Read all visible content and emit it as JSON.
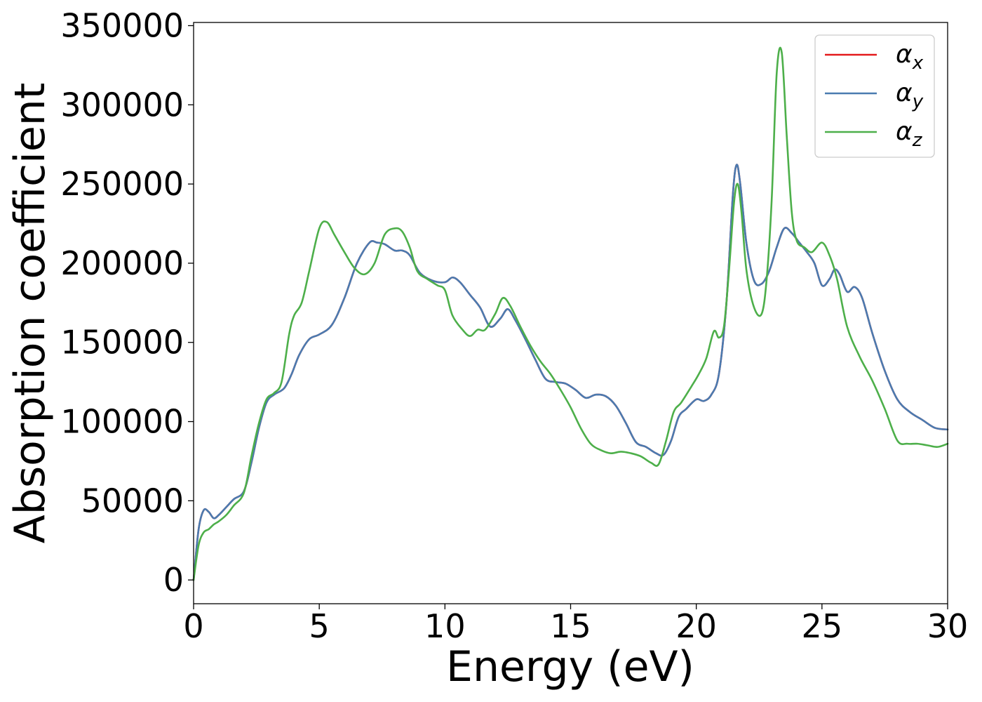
{
  "chart_data": {
    "type": "line",
    "title": "",
    "xlabel": "Energy (eV)",
    "ylabel": "Absorption coefficient",
    "xlim": [
      0,
      30
    ],
    "ylim": [
      -15000,
      352000
    ],
    "xticks": [
      0,
      5,
      10,
      15,
      20,
      25,
      30
    ],
    "yticks": [
      0,
      50000,
      100000,
      150000,
      200000,
      250000,
      300000,
      350000
    ],
    "grid": false,
    "legend_position": "top-right",
    "series": [
      {
        "name": "α_x",
        "symbol": "α",
        "subscript": "x",
        "color": "#e41a1c",
        "x": [
          0,
          0.2,
          0.4,
          0.6,
          0.8,
          1.0,
          1.3,
          1.6,
          2.0,
          2.3,
          2.6,
          2.9,
          3.2,
          3.6,
          3.9,
          4.2,
          4.6,
          5.0,
          5.5,
          6.0,
          6.5,
          7.0,
          7.3,
          7.6,
          8.0,
          8.3,
          8.6,
          9.0,
          9.5,
          10.0,
          10.3,
          10.6,
          11.0,
          11.4,
          11.8,
          12.2,
          12.5,
          12.8,
          13.2,
          13.6,
          14.0,
          14.4,
          14.8,
          15.2,
          15.6,
          16.0,
          16.4,
          16.8,
          17.2,
          17.6,
          18.0,
          18.4,
          18.7,
          19.0,
          19.3,
          19.6,
          20.0,
          20.3,
          20.6,
          20.9,
          21.2,
          21.45,
          21.6,
          21.75,
          22.0,
          22.3,
          22.6,
          22.9,
          23.2,
          23.5,
          23.8,
          24.1,
          24.4,
          24.7,
          25.0,
          25.3,
          25.5,
          25.7,
          26.0,
          26.3,
          26.6,
          27.0,
          27.5,
          28.0,
          28.5,
          29.0,
          29.5,
          30.0
        ],
        "y": [
          0,
          32000,
          44000,
          43000,
          39000,
          41000,
          46000,
          51000,
          56000,
          74000,
          96000,
          112000,
          117000,
          121000,
          130000,
          142000,
          152000,
          155000,
          161000,
          178000,
          200000,
          213000,
          213000,
          212000,
          208000,
          208000,
          205000,
          194000,
          189000,
          188000,
          191000,
          188000,
          180000,
          172000,
          160000,
          165000,
          171000,
          164000,
          152000,
          139000,
          127000,
          125000,
          124000,
          120000,
          115000,
          117000,
          116000,
          110000,
          99000,
          87000,
          84000,
          80000,
          79000,
          88000,
          103000,
          108000,
          114000,
          113000,
          117000,
          130000,
          175000,
          242000,
          262000,
          250000,
          212000,
          189000,
          187000,
          195000,
          210000,
          222000,
          219000,
          213000,
          207000,
          200000,
          186000,
          190000,
          196000,
          193000,
          182000,
          185000,
          178000,
          156000,
          132000,
          114000,
          106000,
          101000,
          96000,
          95000
        ]
      },
      {
        "name": "α_y",
        "symbol": "α",
        "subscript": "y",
        "color": "#4a7bb0",
        "x": [
          0,
          0.2,
          0.4,
          0.6,
          0.8,
          1.0,
          1.3,
          1.6,
          2.0,
          2.3,
          2.6,
          2.9,
          3.2,
          3.6,
          3.9,
          4.2,
          4.6,
          5.0,
          5.5,
          6.0,
          6.5,
          7.0,
          7.3,
          7.6,
          8.0,
          8.3,
          8.6,
          9.0,
          9.5,
          10.0,
          10.3,
          10.6,
          11.0,
          11.4,
          11.8,
          12.2,
          12.5,
          12.8,
          13.2,
          13.6,
          14.0,
          14.4,
          14.8,
          15.2,
          15.6,
          16.0,
          16.4,
          16.8,
          17.2,
          17.6,
          18.0,
          18.4,
          18.7,
          19.0,
          19.3,
          19.6,
          20.0,
          20.3,
          20.6,
          20.9,
          21.2,
          21.45,
          21.6,
          21.75,
          22.0,
          22.3,
          22.6,
          22.9,
          23.2,
          23.5,
          23.8,
          24.1,
          24.4,
          24.7,
          25.0,
          25.3,
          25.5,
          25.7,
          26.0,
          26.3,
          26.6,
          27.0,
          27.5,
          28.0,
          28.5,
          29.0,
          29.5,
          30.0
        ],
        "y": [
          0,
          32000,
          44000,
          43000,
          39000,
          41000,
          46000,
          51000,
          56000,
          74000,
          96000,
          112000,
          117000,
          121000,
          130000,
          142000,
          152000,
          155000,
          161000,
          178000,
          200000,
          213000,
          213000,
          212000,
          208000,
          208000,
          205000,
          194000,
          189000,
          188000,
          191000,
          188000,
          180000,
          172000,
          160000,
          165000,
          171000,
          164000,
          152000,
          139000,
          127000,
          125000,
          124000,
          120000,
          115000,
          117000,
          116000,
          110000,
          99000,
          87000,
          84000,
          80000,
          79000,
          88000,
          103000,
          108000,
          114000,
          113000,
          117000,
          130000,
          175000,
          242000,
          262000,
          250000,
          212000,
          189000,
          187000,
          195000,
          210000,
          222000,
          219000,
          213000,
          207000,
          200000,
          186000,
          190000,
          196000,
          193000,
          182000,
          185000,
          178000,
          156000,
          132000,
          114000,
          106000,
          101000,
          96000,
          95000
        ]
      },
      {
        "name": "α_z",
        "symbol": "α",
        "subscript": "z",
        "color": "#4daf4a",
        "x": [
          0,
          0.2,
          0.4,
          0.6,
          0.8,
          1.0,
          1.3,
          1.6,
          2.0,
          2.3,
          2.6,
          2.9,
          3.2,
          3.5,
          3.8,
          4.0,
          4.3,
          4.6,
          5.0,
          5.3,
          5.6,
          6.0,
          6.4,
          6.8,
          7.2,
          7.6,
          8.0,
          8.3,
          8.6,
          8.9,
          9.3,
          9.7,
          10.0,
          10.3,
          10.7,
          11.0,
          11.3,
          11.6,
          12.0,
          12.3,
          12.6,
          13.0,
          13.4,
          13.8,
          14.2,
          14.6,
          15.0,
          15.4,
          15.8,
          16.2,
          16.6,
          17.0,
          17.4,
          17.8,
          18.2,
          18.5,
          18.8,
          19.1,
          19.4,
          19.8,
          20.1,
          20.4,
          20.7,
          20.9,
          21.1,
          21.3,
          21.5,
          21.65,
          21.8,
          22.0,
          22.3,
          22.6,
          22.8,
          23.0,
          23.2,
          23.4,
          23.6,
          23.8,
          24.0,
          24.3,
          24.6,
          25.0,
          25.3,
          25.6,
          26.0,
          26.5,
          27.0,
          27.5,
          28.0,
          28.4,
          28.8,
          29.2,
          29.6,
          30.0
        ],
        "y": [
          0,
          22000,
          30000,
          32000,
          35000,
          37000,
          41000,
          47000,
          55000,
          78000,
          99000,
          114000,
          118000,
          125000,
          155000,
          167000,
          175000,
          195000,
          222000,
          226000,
          218000,
          207000,
          197000,
          193000,
          200000,
          218000,
          222000,
          220000,
          210000,
          195000,
          190000,
          186000,
          183000,
          167000,
          158000,
          154000,
          158000,
          158000,
          168000,
          178000,
          173000,
          160000,
          148000,
          138000,
          130000,
          120000,
          109000,
          96000,
          86000,
          82000,
          80000,
          81000,
          80000,
          78000,
          74000,
          73000,
          88000,
          106000,
          112000,
          122000,
          130000,
          140000,
          157000,
          153000,
          160000,
          195000,
          238000,
          250000,
          232000,
          195000,
          172000,
          168000,
          190000,
          240000,
          320000,
          333000,
          280000,
          232000,
          214000,
          210000,
          207000,
          213000,
          205000,
          190000,
          160000,
          141000,
          126000,
          108000,
          88000,
          86000,
          86000,
          85000,
          84000,
          86000
        ]
      }
    ]
  }
}
